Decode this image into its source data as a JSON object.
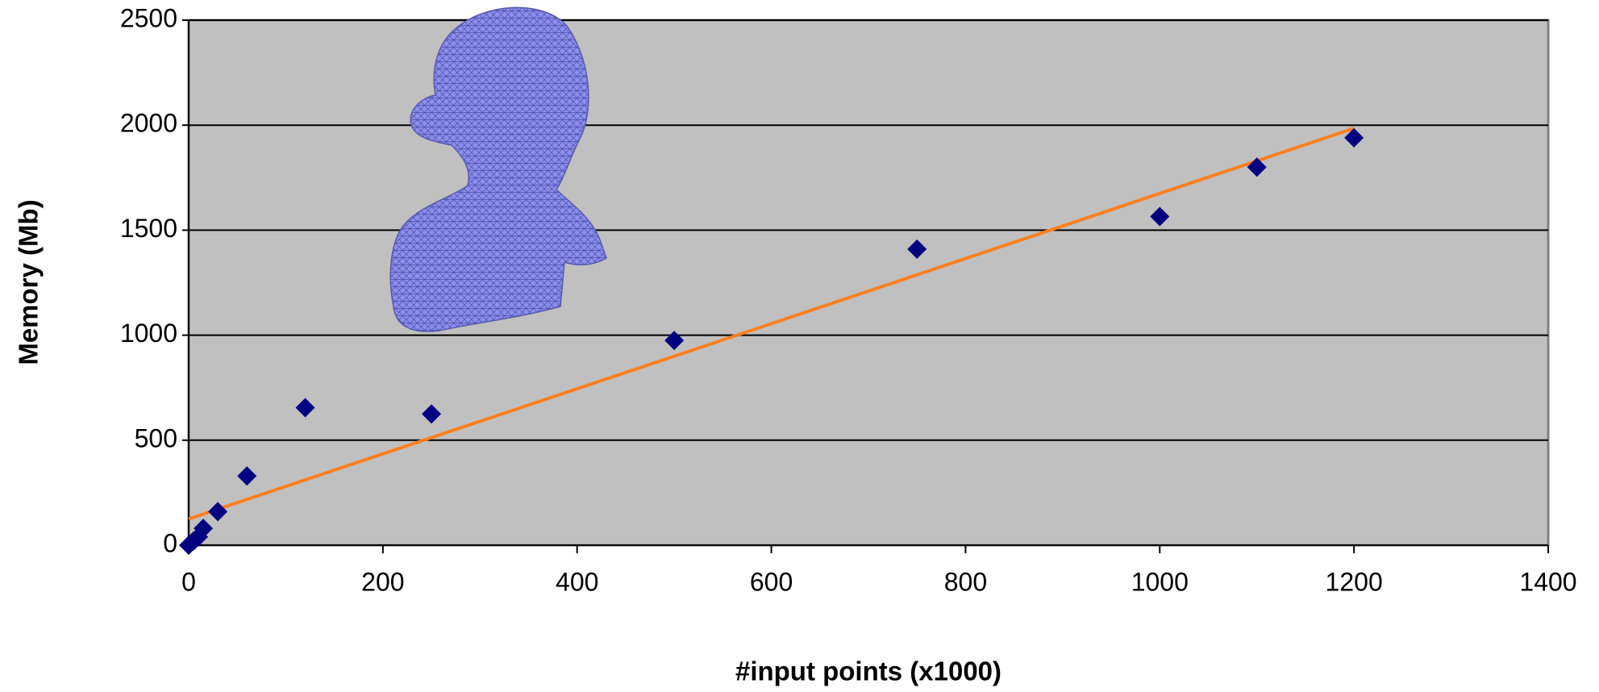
{
  "chart_data": {
    "type": "scatter",
    "x_label": "#input points (x1000)",
    "y_label": "Memory (Mb)",
    "x": [
      0,
      5,
      10,
      15,
      30,
      60,
      120,
      250,
      500,
      750,
      1000,
      1100,
      1200
    ],
    "series": [
      {
        "color": "#000080",
        "values": [
          0,
          20,
          40,
          80,
          160,
          330,
          655,
          625,
          975,
          1410,
          1565,
          1800,
          1940
        ]
      }
    ],
    "trend_line": {
      "x": [
        0,
        1200
      ],
      "values": [
        125,
        1985
      ],
      "color": "#ff7f1f"
    },
    "xlim": [
      0,
      1400
    ],
    "xticks": [
      0,
      200,
      400,
      600,
      800,
      1000,
      1200,
      1400
    ],
    "ylim": [
      0,
      2500
    ],
    "yticks": [
      0,
      500,
      1000,
      1500,
      2000,
      2500
    ],
    "grid": true,
    "plot_background": "#c0c0c0"
  }
}
